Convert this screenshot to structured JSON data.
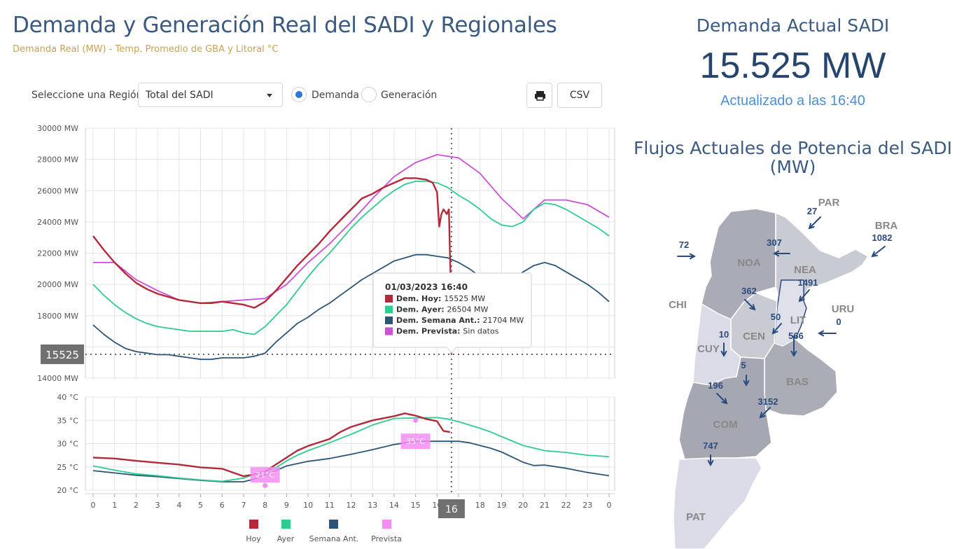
{
  "header": {
    "title": "Demanda y Generación Real del SADI y Regionales",
    "subtitle": "Demanda Real (MW) - Temp. Promedio de GBA y Litoral °C"
  },
  "controls": {
    "region_label": "Seleccione una Región",
    "region_selected": "Total del SADI",
    "radio_demanda": "Demanda",
    "radio_generacion": "Generación",
    "radio_selected": "Demanda",
    "csv_label": "CSV",
    "print_icon": "printer-icon"
  },
  "current": {
    "title": "Demanda Actual SADI",
    "value": "15.525 MW",
    "updated": "Actualizado a las 16:40"
  },
  "flows": {
    "title_line1": "Flujos Actuales de Potencia del SADI",
    "title_line2": "(MW)",
    "regions": [
      {
        "id": "PAR",
        "label": "PAR"
      },
      {
        "id": "BRA",
        "label": "BRA"
      },
      {
        "id": "NOA",
        "label": "NOA"
      },
      {
        "id": "NEA",
        "label": "NEA"
      },
      {
        "id": "CHI",
        "label": "CHI"
      },
      {
        "id": "LIT",
        "label": "LIT"
      },
      {
        "id": "URU",
        "label": "URU"
      },
      {
        "id": "CEN",
        "label": "CEN"
      },
      {
        "id": "CUY",
        "label": "CUY"
      },
      {
        "id": "BAS",
        "label": "BAS"
      },
      {
        "id": "COM",
        "label": "COM"
      },
      {
        "id": "PAT",
        "label": "PAT"
      }
    ],
    "values": [
      {
        "id": "par",
        "value": "27"
      },
      {
        "id": "bra",
        "value": "1082"
      },
      {
        "id": "chi",
        "value": "72"
      },
      {
        "id": "nea-noa",
        "value": "307"
      },
      {
        "id": "nea-lit",
        "value": "1491"
      },
      {
        "id": "noa-cen",
        "value": "362"
      },
      {
        "id": "cen-lit",
        "value": "50"
      },
      {
        "id": "uru",
        "value": "0"
      },
      {
        "id": "cuy-cen",
        "value": "10"
      },
      {
        "id": "lit-bas",
        "value": "566"
      },
      {
        "id": "cen-bas",
        "value": "5"
      },
      {
        "id": "cuy-com",
        "value": "196"
      },
      {
        "id": "com-bas",
        "value": "3152"
      },
      {
        "id": "pat-com",
        "value": "747"
      }
    ]
  },
  "colors": {
    "hoy": "#b5283a",
    "ayer": "#2ecc8f",
    "semana": "#2a5579",
    "prevista": "#cc4fd6",
    "prevista_temp": "#f48cf4",
    "title": "#3a5a84"
  },
  "chart_data": [
    {
      "type": "line",
      "title": "",
      "ylabel": "",
      "xlabel": "",
      "ylim": [
        14000,
        30000
      ],
      "y_ticks": [
        "30000 MW",
        "28000 MW",
        "26000 MW",
        "24000 MW",
        "22000 MW",
        "20000 MW",
        "18000 MW",
        "",
        "14000 MW"
      ],
      "y_tick_values": [
        30000,
        28000,
        26000,
        24000,
        22000,
        20000,
        18000,
        16000,
        14000
      ],
      "crosshair": {
        "x": 16.67,
        "y": 15525,
        "y_label": "15525"
      },
      "series": [
        {
          "name": "Dem. Hoy",
          "key": "hoy",
          "x": [
            0,
            0.5,
            1,
            1.5,
            2,
            2.5,
            3,
            3.5,
            4,
            4.5,
            5,
            5.5,
            6,
            6.5,
            7,
            7.5,
            8,
            8.5,
            9,
            9.5,
            10,
            10.5,
            11,
            11.5,
            12,
            12.5,
            13,
            13.5,
            14,
            14.5,
            15,
            15.5,
            15.8,
            16,
            16.1,
            16.2,
            16.3,
            16.45,
            16.55,
            16.6,
            16.65,
            16.67
          ],
          "y": [
            23100,
            22200,
            21400,
            20700,
            20100,
            19700,
            19400,
            19200,
            19000,
            18900,
            18800,
            18800,
            18900,
            18800,
            18700,
            18500,
            18900,
            19600,
            20400,
            21200,
            21900,
            22600,
            23400,
            24100,
            24800,
            25500,
            25800,
            26200,
            26500,
            26800,
            26800,
            26700,
            26500,
            25900,
            23700,
            24500,
            24800,
            24500,
            24800,
            21800,
            19600,
            15525
          ]
        },
        {
          "name": "Dem. Ayer",
          "key": "ayer",
          "x": [
            0,
            0.5,
            1,
            1.5,
            2,
            2.5,
            3,
            3.5,
            4,
            4.5,
            5,
            5.5,
            6,
            6.5,
            7,
            7.5,
            8,
            8.5,
            9,
            9.5,
            10,
            10.5,
            11,
            11.5,
            12,
            12.5,
            13,
            13.5,
            14,
            14.5,
            15,
            15.5,
            16,
            16.5,
            17,
            17.5,
            18,
            18.5,
            19,
            19.5,
            20,
            20.5,
            21,
            21.5,
            22,
            22.5,
            23,
            23.5,
            24
          ],
          "y": [
            20000,
            19300,
            18700,
            18200,
            17800,
            17500,
            17300,
            17200,
            17100,
            17000,
            17000,
            17000,
            17000,
            17100,
            16900,
            16800,
            17300,
            18000,
            18700,
            19600,
            20500,
            21300,
            22000,
            22800,
            23600,
            24300,
            24900,
            25500,
            26000,
            26400,
            26600,
            26600,
            26500,
            26200,
            25700,
            25300,
            24800,
            24200,
            23800,
            23700,
            24000,
            24800,
            25200,
            25100,
            24800,
            24400,
            24000,
            23600,
            23100
          ]
        },
        {
          "name": "Dem. Semana Ant.",
          "key": "semana",
          "x": [
            0,
            0.5,
            1,
            1.5,
            2,
            2.5,
            3,
            3.5,
            4,
            4.5,
            5,
            5.5,
            6,
            6.5,
            7,
            7.5,
            8,
            8.5,
            9,
            9.5,
            10,
            10.5,
            11,
            11.5,
            12,
            12.5,
            13,
            13.5,
            14,
            14.5,
            15,
            15.5,
            16,
            16.5,
            17,
            17.5,
            18,
            18.5,
            19,
            19.5,
            20,
            20.5,
            21,
            21.5,
            22,
            22.5,
            23,
            23.5,
            24
          ],
          "y": [
            17400,
            16800,
            16300,
            15900,
            15700,
            15600,
            15500,
            15500,
            15400,
            15300,
            15200,
            15200,
            15300,
            15300,
            15300,
            15400,
            15600,
            16300,
            16900,
            17500,
            17900,
            18400,
            18800,
            19300,
            19800,
            20300,
            20700,
            21100,
            21500,
            21700,
            21900,
            21900,
            21800,
            21700,
            21400,
            21000,
            20500,
            20100,
            20000,
            20300,
            20800,
            21200,
            21400,
            21200,
            20800,
            20400,
            20000,
            19500,
            18900
          ]
        },
        {
          "name": "Dem. Prevista",
          "key": "prevista",
          "x": [
            0,
            1,
            2,
            3,
            4,
            5,
            6,
            7,
            8,
            9,
            10,
            11,
            12,
            13,
            14,
            15,
            16,
            17,
            18,
            19,
            20,
            21,
            22,
            23,
            24
          ],
          "y": [
            21400,
            21400,
            20300,
            19600,
            19000,
            18800,
            18900,
            19000,
            19100,
            20000,
            21400,
            22600,
            24000,
            25500,
            26900,
            27800,
            28300,
            28100,
            27100,
            25500,
            24200,
            25400,
            25400,
            25100,
            24300
          ]
        }
      ],
      "tooltip": {
        "date": "01/03/2023 16:40",
        "rows": [
          {
            "key": "hoy",
            "label": "Dem. Hoy:",
            "value": "15525 MW"
          },
          {
            "key": "ayer",
            "label": "Dem. Ayer:",
            "value": "26504 MW"
          },
          {
            "key": "semana",
            "label": "Dem. Semana Ant.:",
            "value": "21704 MW"
          },
          {
            "key": "prevista",
            "label": "Dem. Prevista:",
            "value": "Sin datos"
          }
        ]
      }
    },
    {
      "type": "line",
      "title": "",
      "xlabel": "",
      "ylabel": "",
      "ylim": [
        20,
        40
      ],
      "y_ticks": [
        "40 °C",
        "35 °C",
        "30 °C",
        "25 °C",
        "20 °C"
      ],
      "y_tick_values": [
        40,
        35,
        30,
        25,
        20
      ],
      "x_ticks": [
        "0",
        "1",
        "2",
        "3",
        "4",
        "5",
        "6",
        "7",
        "8",
        "9",
        "10",
        "11",
        "12",
        "13",
        "14",
        "15",
        "16",
        "17",
        "18",
        "19",
        "20",
        "21",
        "22",
        "23",
        "0"
      ],
      "x_tick_values": [
        0,
        1,
        2,
        3,
        4,
        5,
        6,
        7,
        8,
        9,
        10,
        11,
        12,
        13,
        14,
        15,
        16,
        17,
        18,
        19,
        20,
        21,
        22,
        23,
        24
      ],
      "x_cursor_label": "16",
      "series": [
        {
          "name": "Hoy",
          "key": "hoy",
          "x": [
            0,
            1,
            2,
            3,
            4,
            5,
            6,
            7,
            7.5,
            8,
            8.5,
            9,
            9.5,
            10,
            11,
            11.5,
            12,
            13,
            14,
            14.5,
            15,
            15.5,
            16,
            16.3,
            16.6
          ],
          "y": [
            27,
            26.8,
            26.3,
            25.9,
            25.5,
            24.9,
            24.6,
            23,
            23.4,
            24,
            25.5,
            27,
            28.5,
            29.5,
            31,
            32.5,
            33.6,
            35,
            35.9,
            36.5,
            36,
            35.3,
            34.8,
            32.7,
            32.5
          ]
        },
        {
          "name": "Ayer",
          "key": "ayer",
          "x": [
            0,
            1,
            2,
            3,
            4,
            5,
            6,
            7,
            7.5,
            8,
            8.5,
            9,
            9.5,
            10,
            11,
            12,
            12.5,
            13,
            14,
            15,
            16,
            16.5,
            17,
            17.5,
            18,
            18.5,
            19,
            20,
            21,
            22,
            23,
            24
          ],
          "y": [
            25.2,
            24.3,
            23.5,
            23.1,
            22.6,
            22.2,
            21.9,
            22.6,
            23.4,
            24,
            24.8,
            26.3,
            27.5,
            28.5,
            30.2,
            32,
            33,
            34,
            35.4,
            35.5,
            35.6,
            35.3,
            34.7,
            34,
            33.3,
            32.5,
            31.5,
            29.6,
            28.5,
            28.1,
            27.5,
            27.2
          ]
        },
        {
          "name": "Semana Ant.",
          "key": "semana",
          "x": [
            0,
            1,
            2,
            3,
            4,
            5,
            6,
            7,
            7.5,
            8,
            8.5,
            9,
            10,
            11,
            12,
            13,
            14,
            15,
            16,
            17,
            17.5,
            18,
            18.5,
            19,
            20,
            20.5,
            21,
            22,
            23,
            24
          ],
          "y": [
            24.2,
            23.7,
            23.2,
            22.9,
            22.5,
            22.1,
            21.8,
            21.8,
            22.4,
            23.3,
            24.2,
            25.2,
            26.2,
            26.8,
            27.7,
            28.7,
            29.8,
            30.5,
            30.5,
            30.5,
            30.2,
            29.6,
            29,
            28.2,
            26,
            25.3,
            25.4,
            24.7,
            23.8,
            23.1
          ]
        }
      ],
      "prevista_points": [
        {
          "x": 8,
          "y": 21,
          "label": "21°C"
        },
        {
          "x": 15,
          "y": 35,
          "label": "35°C"
        }
      ]
    }
  ],
  "legend": [
    {
      "key": "hoy",
      "label": "Hoy"
    },
    {
      "key": "ayer",
      "label": "Ayer"
    },
    {
      "key": "semana",
      "label": "Semana Ant."
    },
    {
      "key": "prevista",
      "label": "Prevista"
    }
  ]
}
